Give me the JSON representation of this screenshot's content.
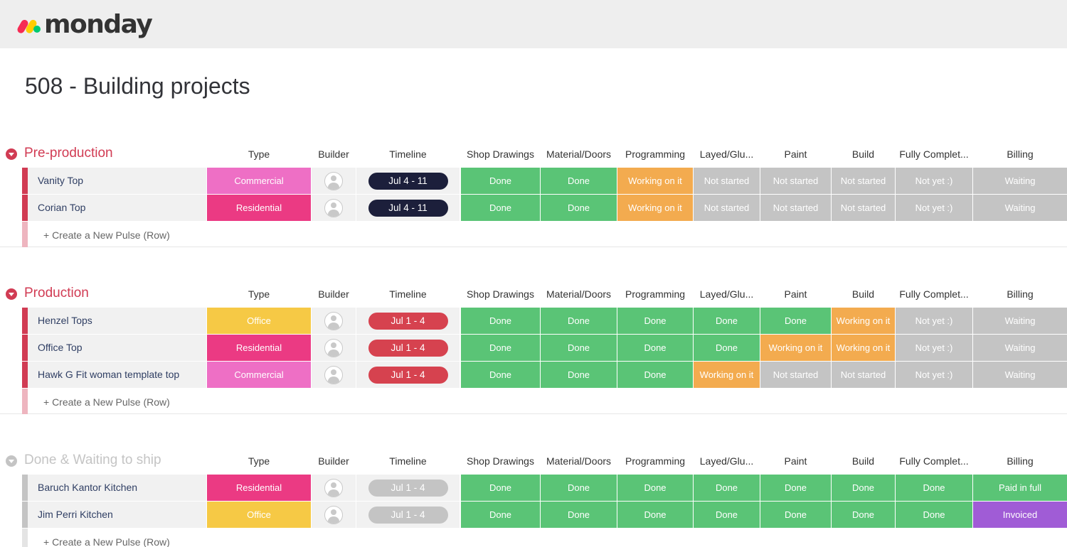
{
  "app": {
    "logo_text": "monday",
    "colors": {
      "topbar": "#eeeeee",
      "logo_pink": "#f62b54",
      "logo_yellow": "#ffcc00",
      "logo_green": "#00ca72"
    }
  },
  "board": {
    "title": "508 - Building projects"
  },
  "columns": [
    "Type",
    "Builder",
    "Timeline",
    "Shop Drawings",
    "Material/Doors",
    "Programming",
    "Layed/Glu...",
    "Paint",
    "Build",
    "Fully Complet...",
    "Billing"
  ],
  "status_colors": {
    "Commercial": "#ee6fc5",
    "Residential": "#eb3a83",
    "Office": "#f6c945",
    "Done": "#5ac476",
    "Working on it": "#f3ab4f",
    "Not started": "#c4c4c4",
    "Not yet :)": "#c4c4c4",
    "Waiting": "#c4c4c4",
    "Paid in full": "#5ac476",
    "Invoiced": "#a05cd6"
  },
  "add_row_label": "+ Create a New Pulse (Row)",
  "groups": [
    {
      "title": "Pre-production",
      "color": "#d13b53",
      "add_bar_color": "#eeb5bf",
      "timeline_color": "#1c1f3b",
      "rows": [
        {
          "name": "Vanity Top",
          "type": "Commercial",
          "timeline": "Jul 4 - 11",
          "statuses": [
            "Done",
            "Done",
            "Working on it",
            "Not started",
            "Not started",
            "Not started",
            "Not yet :)",
            "Waiting"
          ]
        },
        {
          "name": "Corian Top",
          "type": "Residential",
          "timeline": "Jul 4 - 11",
          "statuses": [
            "Done",
            "Done",
            "Working on it",
            "Not started",
            "Not started",
            "Not started",
            "Not yet :)",
            "Waiting"
          ]
        }
      ]
    },
    {
      "title": "Production",
      "color": "#d13b53",
      "add_bar_color": "#eeb5bf",
      "timeline_color": "#d6424f",
      "rows": [
        {
          "name": "Henzel Tops",
          "type": "Office",
          "timeline": "Jul 1 - 4",
          "statuses": [
            "Done",
            "Done",
            "Done",
            "Done",
            "Done",
            "Working on it",
            "Not yet :)",
            "Waiting"
          ]
        },
        {
          "name": "Office Top",
          "type": "Residential",
          "timeline": "Jul 1 - 4",
          "statuses": [
            "Done",
            "Done",
            "Done",
            "Done",
            "Working on it",
            "Working on it",
            "Not yet :)",
            "Waiting"
          ]
        },
        {
          "name": "Hawk G Fit woman template top",
          "type": "Commercial",
          "timeline": "Jul 1 - 4",
          "statuses": [
            "Done",
            "Done",
            "Done",
            "Working on it",
            "Not started",
            "Not started",
            "Not yet :)",
            "Waiting"
          ]
        }
      ]
    },
    {
      "title": "Done & Waiting to ship",
      "color": "#c4c4c4",
      "add_bar_color": "#e4e4e4",
      "timeline_color": "#c4c4c4",
      "rows": [
        {
          "name": "Baruch Kantor Kitchen",
          "type": "Residential",
          "timeline": "Jul 1 - 4",
          "statuses": [
            "Done",
            "Done",
            "Done",
            "Done",
            "Done",
            "Done",
            "Done",
            "Paid in full"
          ]
        },
        {
          "name": "Jim Perri Kitchen",
          "type": "Office",
          "timeline": "Jul 1 - 4",
          "statuses": [
            "Done",
            "Done",
            "Done",
            "Done",
            "Done",
            "Done",
            "Done",
            "Invoiced"
          ]
        }
      ]
    }
  ]
}
